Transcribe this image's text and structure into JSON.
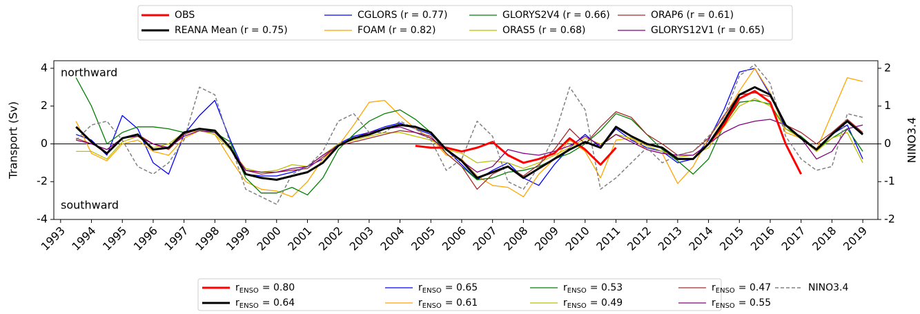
{
  "chart_data": {
    "type": "line",
    "y_label": "Transport (Sv)",
    "y2_label": "NINO3.4",
    "annotations": [
      "northward",
      "southward"
    ],
    "enso_symbol": "r",
    "enso_subscript": "ENSO",
    "zero_line": true,
    "x": [
      1993.5,
      1994.0,
      1994.5,
      1995.0,
      1995.5,
      1996.0,
      1996.5,
      1997.0,
      1997.5,
      1998.0,
      1998.5,
      1999.0,
      1999.5,
      2000.0,
      2000.5,
      2001.0,
      2001.5,
      2002.0,
      2002.5,
      2003.0,
      2003.5,
      2004.0,
      2004.5,
      2005.0,
      2005.5,
      2006.0,
      2006.5,
      2007.0,
      2007.5,
      2008.0,
      2008.5,
      2009.0,
      2009.5,
      2010.0,
      2010.5,
      2011.0,
      2011.5,
      2012.0,
      2012.5,
      2013.0,
      2013.5,
      2014.0,
      2014.5,
      2015.0,
      2015.5,
      2016.0,
      2016.5,
      2017.0,
      2017.5,
      2018.0,
      2018.5,
      2019.0
    ],
    "xlim": [
      1992.78,
      2019.49
    ],
    "xticks": [
      1993,
      1994,
      1995,
      1996,
      1997,
      1998,
      1999,
      2000,
      2001,
      2002,
      2003,
      2004,
      2005,
      2006,
      2007,
      2008,
      2009,
      2010,
      2011,
      2012,
      2013,
      2014,
      2015,
      2016,
      2017,
      2018,
      2019
    ],
    "ylim": [
      -4,
      4.4
    ],
    "yticks": [
      -4,
      -2,
      0,
      2,
      4
    ],
    "y2lim": [
      -2,
      2.2
    ],
    "y2ticks": [
      -2,
      -1,
      0,
      1,
      2
    ],
    "series": [
      {
        "name": "OBS",
        "enso_r": "= 0.80",
        "color": "#ff0000",
        "line_width": 3,
        "values": [
          null,
          null,
          null,
          null,
          null,
          null,
          null,
          null,
          null,
          null,
          null,
          null,
          null,
          null,
          null,
          null,
          null,
          null,
          null,
          null,
          null,
          null,
          -0.1,
          -0.2,
          -0.2,
          -0.4,
          -0.2,
          0.1,
          -0.6,
          -1.0,
          -0.8,
          -0.5,
          0.3,
          -0.3,
          -1.1,
          -0.2,
          null,
          null,
          null,
          null,
          null,
          0.0,
          1.0,
          2.4,
          2.8,
          2.2,
          0.0,
          -1.6,
          null,
          null,
          null,
          null
        ]
      },
      {
        "name": "REANA Mean (r = 0.75)",
        "enso_r": "= 0.64",
        "color": "#000000",
        "line_width": 3,
        "values": [
          0.9,
          0.1,
          -0.5,
          0.3,
          0.5,
          -0.3,
          -0.2,
          0.6,
          0.8,
          0.7,
          -0.2,
          -1.6,
          -1.8,
          -1.9,
          -1.7,
          -1.5,
          -1.0,
          -0.1,
          0.3,
          0.5,
          0.8,
          1.0,
          0.9,
          0.6,
          -0.3,
          -0.9,
          -1.8,
          -1.5,
          -1.2,
          -1.8,
          -1.3,
          -0.8,
          -0.3,
          0.1,
          -0.2,
          0.9,
          0.4,
          0.0,
          -0.2,
          -0.8,
          -0.8,
          0.0,
          1.2,
          2.6,
          3.0,
          2.6,
          1.0,
          0.3,
          -0.3,
          0.5,
          1.2,
          0.5
        ]
      },
      {
        "name": "CGLORS (r =  0.77)",
        "enso_r": "= 0.65",
        "color": "#0000ff",
        "line_width": 1.3,
        "values": [
          0.5,
          0.2,
          -0.6,
          1.5,
          0.8,
          -1.0,
          -1.6,
          0.5,
          1.5,
          2.3,
          0.2,
          -1.6,
          -1.7,
          -1.7,
          -1.5,
          -1.2,
          -0.8,
          0.0,
          0.4,
          0.6,
          0.9,
          1.1,
          0.8,
          0.5,
          -0.3,
          -1.1,
          -1.9,
          -1.4,
          -1.0,
          -1.8,
          -2.2,
          -1.1,
          -0.2,
          0.5,
          -0.2,
          0.8,
          0.2,
          -0.2,
          -0.4,
          -1.0,
          -0.8,
          0.2,
          1.8,
          3.8,
          4.0,
          2.6,
          0.8,
          0.3,
          -0.4,
          0.5,
          1.0,
          -0.8
        ]
      },
      {
        "name": "FOAM (r =  0.82)",
        "enso_r": "= 0.61",
        "color": "#ffa500",
        "line_width": 1.3,
        "values": [
          1.2,
          -0.5,
          -0.9,
          0.0,
          0.2,
          -0.4,
          -0.6,
          0.3,
          0.7,
          0.5,
          -0.8,
          -2.0,
          -2.4,
          -2.5,
          -2.8,
          -2.0,
          -0.8,
          -0.1,
          1.0,
          2.2,
          2.3,
          1.5,
          0.8,
          0.3,
          -0.6,
          -0.8,
          -1.7,
          -2.2,
          -2.3,
          -2.8,
          -1.6,
          -0.8,
          0.2,
          -0.4,
          -1.8,
          0.2,
          0.3,
          -0.3,
          -0.5,
          -2.1,
          -1.2,
          0.3,
          1.4,
          2.8,
          4.0,
          2.7,
          0.6,
          0.3,
          -0.3,
          1.6,
          3.5,
          3.3
        ]
      },
      {
        "name": "GLORYS2V4 (r =  0.66)",
        "enso_r": "= 0.53",
        "color": "#008000",
        "line_width": 1.3,
        "values": [
          3.5,
          2.0,
          0.0,
          0.6,
          0.9,
          0.9,
          0.8,
          0.6,
          0.8,
          0.6,
          0.1,
          -1.8,
          -2.6,
          -2.6,
          -2.3,
          -2.7,
          -1.8,
          -0.3,
          0.5,
          1.2,
          1.6,
          1.8,
          1.3,
          0.6,
          -0.5,
          -1.2,
          -1.9,
          -1.8,
          -1.5,
          -1.4,
          -1.2,
          -0.8,
          -0.5,
          0.0,
          0.7,
          1.6,
          1.3,
          0.5,
          -0.3,
          -0.9,
          -1.6,
          -0.8,
          1.0,
          2.2,
          2.3,
          2.1,
          0.8,
          0.4,
          -0.3,
          0.3,
          0.8,
          -0.4
        ]
      },
      {
        "name": "ORAS5 (r =  0.68)",
        "enso_r": "= 0.49",
        "color": "#bfbf00",
        "line_width": 1.3,
        "values": [
          -0.4,
          -0.4,
          -0.8,
          0.1,
          0.4,
          -0.2,
          0.0,
          0.6,
          0.7,
          0.5,
          -0.3,
          -1.3,
          -1.5,
          -1.4,
          -1.1,
          -1.2,
          -0.6,
          0.0,
          0.2,
          0.4,
          0.6,
          0.6,
          0.4,
          0.2,
          -0.3,
          -0.5,
          -1.0,
          -0.9,
          -1.0,
          -1.3,
          -1.0,
          -0.6,
          -0.2,
          0.3,
          0.0,
          0.5,
          0.3,
          -0.1,
          -0.4,
          -0.7,
          -0.6,
          -0.2,
          0.9,
          2.0,
          2.4,
          2.0,
          0.8,
          0.3,
          -0.4,
          0.3,
          0.6,
          -1.0
        ]
      },
      {
        "name": "ORAP6 (r =  0.61)",
        "enso_r": "= 0.47",
        "color": "#a52a2a",
        "line_width": 1.3,
        "values": [
          0.3,
          0.0,
          -0.3,
          0.3,
          0.5,
          0.0,
          -0.3,
          0.5,
          0.8,
          0.7,
          -0.2,
          -1.4,
          -1.6,
          -1.5,
          -1.4,
          -1.3,
          -0.7,
          -0.1,
          0.1,
          0.3,
          0.5,
          0.7,
          0.6,
          0.4,
          -0.5,
          -1.2,
          -2.4,
          -1.6,
          -1.2,
          -1.7,
          -1.1,
          -0.3,
          0.8,
          0.0,
          0.9,
          1.7,
          1.4,
          0.5,
          0.0,
          -0.6,
          -0.4,
          0.3,
          1.5,
          2.6,
          2.7,
          2.5,
          1.0,
          0.6,
          0.0,
          0.6,
          1.3,
          0.6
        ]
      },
      {
        "name": "GLORYS12V1 (r =  0.65)",
        "enso_r": "= 0.55",
        "color": "#800080",
        "line_width": 1.3,
        "values": [
          0.2,
          0.0,
          -0.3,
          0.3,
          0.4,
          0.0,
          -0.2,
          0.4,
          0.7,
          0.6,
          -0.2,
          -1.4,
          -1.5,
          -1.5,
          -1.3,
          -1.2,
          -0.6,
          -0.1,
          0.3,
          0.6,
          0.8,
          0.9,
          0.6,
          0.3,
          -0.3,
          -0.9,
          -1.5,
          -1.2,
          -0.3,
          -0.5,
          -0.6,
          -0.4,
          -0.1,
          0.4,
          -0.1,
          0.5,
          0.1,
          -0.3,
          -0.5,
          -0.6,
          -0.6,
          0.0,
          0.6,
          1.0,
          1.2,
          1.3,
          1.0,
          0.3,
          -0.8,
          -0.4,
          0.8,
          1.0
        ]
      },
      {
        "name": "NINO3.4",
        "axis": "y2",
        "dashed": true,
        "color": "#808080",
        "line_width": 1.5,
        "values": [
          0.1,
          0.5,
          0.6,
          0.1,
          -0.6,
          -0.8,
          -0.5,
          0.1,
          1.5,
          1.3,
          0.0,
          -1.2,
          -1.4,
          -1.6,
          -0.8,
          -0.6,
          -0.2,
          0.6,
          0.8,
          0.3,
          0.3,
          0.6,
          0.4,
          0.1,
          -0.7,
          -0.4,
          0.6,
          0.2,
          -1.0,
          -1.2,
          -0.6,
          0.2,
          1.5,
          0.9,
          -1.2,
          -0.9,
          -0.5,
          -0.1,
          -0.5,
          -0.3,
          -0.2,
          0.2,
          0.7,
          1.8,
          2.1,
          1.6,
          0.2,
          -0.4,
          -0.7,
          -0.6,
          0.8,
          0.7
        ]
      }
    ]
  }
}
